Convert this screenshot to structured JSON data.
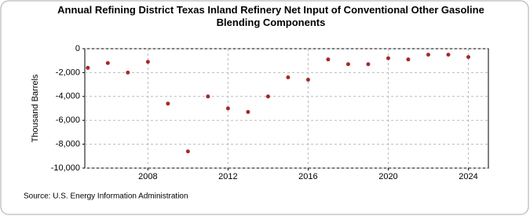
{
  "chart_data": {
    "type": "scatter",
    "title": "Annual Refining District Texas Inland Refinery Net Input of Conventional Other Gasoline Blending Components",
    "y_label": "Thousand Barrels",
    "source": "Source: U.S. Energy Information Administration",
    "color": "#a52a2a",
    "grid": true,
    "x": [
      2005,
      2006,
      2007,
      2008,
      2009,
      2010,
      2011,
      2012,
      2013,
      2014,
      2015,
      2016,
      2017,
      2018,
      2019,
      2020,
      2021,
      2022,
      2023,
      2024
    ],
    "values": [
      -1600,
      -1200,
      -2000,
      -1100,
      -4600,
      -8600,
      -4000,
      -5000,
      -5300,
      -4000,
      -2400,
      -2600,
      -900,
      -1300,
      -1300,
      -800,
      -900,
      -500,
      -500,
      -700
    ],
    "xlim": [
      2004.85,
      2025
    ],
    "xticks": [
      2008,
      2012,
      2016,
      2020,
      2024
    ],
    "ylim": [
      -10000,
      0
    ],
    "yticks": [
      {
        "value": -10000,
        "label": "-10,000"
      },
      {
        "value": -8000,
        "label": "-8,000"
      },
      {
        "value": -6000,
        "label": "-6,000"
      },
      {
        "value": -4000,
        "label": "-4,000"
      },
      {
        "value": -2000,
        "label": "-2,000"
      },
      0
    ]
  }
}
